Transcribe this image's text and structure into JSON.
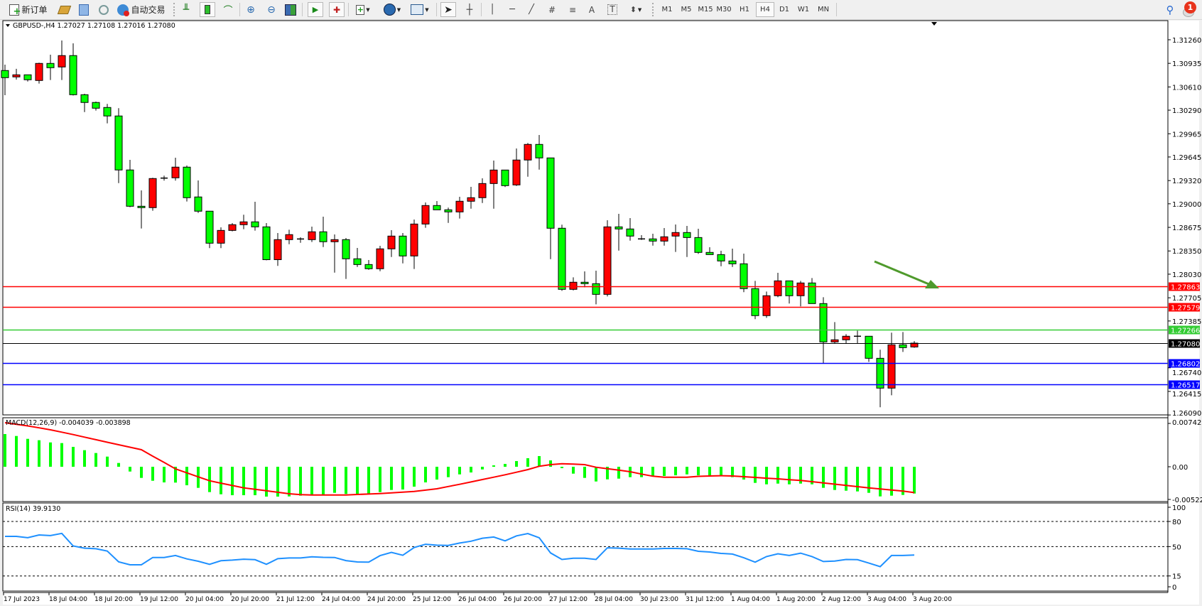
{
  "toolbar": {
    "new_order_label": "新订单",
    "auto_trading_label": "自动交易",
    "timeframes": [
      "M1",
      "M5",
      "M15",
      "M30",
      "H1",
      "H4",
      "D1",
      "W1",
      "MN"
    ],
    "active_timeframe": "H4",
    "notification_count": "1",
    "icons": [
      "new-order-icon",
      "market-watch-icon",
      "navigator-icon",
      "signals-icon",
      "auto-trading-icon",
      "bar-chart-icon",
      "candlestick-icon",
      "line-chart-icon",
      "zoom-in-icon",
      "zoom-out-icon",
      "tile-windows-icon",
      "auto-scroll-icon",
      "chart-shift-icon",
      "indicators-icon",
      "periods-icon",
      "templates-icon",
      "cursor-icon",
      "crosshair-icon",
      "vertical-line-icon",
      "horizontal-line-icon",
      "trendline-icon",
      "equidistant-channel-icon",
      "fibonacci-icon",
      "text-icon",
      "text-label-icon",
      "arrows-icon",
      "search-icon",
      "notification-icon"
    ]
  },
  "chart": {
    "header": "GBPUSD-,H4  1.27027 1.27108 1.27016 1.27080",
    "macd_header": "MACD(12,26,9) -0.004039 -0.003898",
    "rsi_header": "RSI(14) 39.9130",
    "colors": {
      "up": "#ff0000",
      "down": "#00ff00",
      "macd_hist": "#00ff00",
      "macd_signal": "#ff0000",
      "rsi": "#1e90ff",
      "arrow": "#4f9a2c"
    }
  },
  "chart_data": [
    {
      "type": "candlestick",
      "symbol": "GBPUSD-",
      "timeframe": "H4",
      "ylim": [
        1.26101,
        1.31524
      ],
      "y_ticks": [
        "1.31260",
        "1.30935",
        "1.30610",
        "1.30290",
        "1.29965",
        "1.29645",
        "1.29320",
        "1.29000",
        "1.28675",
        "1.28350",
        "1.28030",
        "1.27705",
        "1.27385",
        "1.26740",
        "1.26415",
        "1.26090"
      ],
      "x_ticks": [
        "17 Jul 2023",
        "18 Jul 04:00",
        "18 Jul 20:00",
        "19 Jul 12:00",
        "20 Jul 04:00",
        "20 Jul 20:00",
        "21 Jul 12:00",
        "24 Jul 04:00",
        "24 Jul 20:00",
        "25 Jul 12:00",
        "26 Jul 04:00",
        "26 Jul 20:00",
        "27 Jul 12:00",
        "28 Jul 04:00",
        "30 Jul 23:00",
        "31 Jul 12:00",
        "1 Aug 04:00",
        "1 Aug 20:00",
        "2 Aug 12:00",
        "3 Aug 04:00",
        "3 Aug 20:00"
      ],
      "ohlc": [
        [
          1.30836,
          1.30917,
          1.30496,
          1.30738
        ],
        [
          1.30748,
          1.30859,
          1.30712,
          1.30777
        ],
        [
          1.30777,
          1.3078,
          1.30685,
          1.30709
        ],
        [
          1.30699,
          1.30944,
          1.30656,
          1.30934
        ],
        [
          1.30934,
          1.31054,
          1.30705,
          1.30875
        ],
        [
          1.30885,
          1.3125,
          1.30705,
          1.31042
        ],
        [
          1.31042,
          1.31211,
          1.30493,
          1.30503
        ],
        [
          1.30503,
          1.30516,
          1.30264,
          1.30396
        ],
        [
          1.30396,
          1.30408,
          1.30284,
          1.30317
        ],
        [
          1.30327,
          1.30376,
          1.30108,
          1.3021
        ],
        [
          1.3021,
          1.30317,
          1.29285,
          1.29466
        ],
        [
          1.29466,
          1.29606,
          1.28953,
          1.28966
        ],
        [
          1.28966,
          1.29185,
          1.28659,
          1.28947
        ],
        [
          1.28947,
          1.29358,
          1.28904,
          1.29348
        ],
        [
          1.29348,
          1.29387,
          1.29319,
          1.29354
        ],
        [
          1.29358,
          1.29635,
          1.29319,
          1.29505
        ],
        [
          1.29505,
          1.29527,
          1.29031,
          1.29084
        ],
        [
          1.29094,
          1.29322,
          1.28874,
          1.28898
        ],
        [
          1.28898,
          1.28898,
          1.28389,
          1.28457
        ],
        [
          1.28457,
          1.28675,
          1.28389,
          1.28633
        ],
        [
          1.28633,
          1.28734,
          1.2862,
          1.28712
        ],
        [
          1.28712,
          1.28849,
          1.2865,
          1.28751
        ],
        [
          1.28751,
          1.29028,
          1.2863,
          1.28682
        ],
        [
          1.28682,
          1.28734,
          1.28222,
          1.2823
        ],
        [
          1.2823,
          1.28597,
          1.28144,
          1.28506
        ],
        [
          1.28506,
          1.28643,
          1.28443,
          1.28575
        ],
        [
          1.28512,
          1.28538,
          1.28463,
          1.28515
        ],
        [
          1.28506,
          1.28685,
          1.28473,
          1.28614
        ],
        [
          1.28614,
          1.28822,
          1.28404,
          1.28477
        ],
        [
          1.28477,
          1.28578,
          1.28052,
          1.28506
        ],
        [
          1.28506,
          1.28529,
          1.27964,
          1.28242
        ],
        [
          1.28242,
          1.28392,
          1.2813,
          1.28163
        ],
        [
          1.28163,
          1.28225,
          1.28091,
          1.28105
        ],
        [
          1.28105,
          1.28421,
          1.28071,
          1.28379
        ],
        [
          1.28379,
          1.28636,
          1.28267,
          1.28555
        ],
        [
          1.28555,
          1.28597,
          1.28179,
          1.28281
        ],
        [
          1.28281,
          1.28783,
          1.28101,
          1.28721
        ],
        [
          1.28721,
          1.29018,
          1.28669,
          1.28976
        ],
        [
          1.28976,
          1.29038,
          1.28917,
          1.28917
        ],
        [
          1.28917,
          1.28947,
          1.28737,
          1.28888
        ],
        [
          1.28888,
          1.29096,
          1.28796,
          1.29035
        ],
        [
          1.29035,
          1.29233,
          1.28933,
          1.29084
        ],
        [
          1.29084,
          1.29351,
          1.29011,
          1.29279
        ],
        [
          1.29279,
          1.29596,
          1.28933,
          1.29465
        ],
        [
          1.29465,
          1.29465,
          1.29231,
          1.2925
        ],
        [
          1.2926,
          1.29762,
          1.29246,
          1.29603
        ],
        [
          1.29603,
          1.29838,
          1.29373,
          1.29818
        ],
        [
          1.29818,
          1.29948,
          1.29471,
          1.29632
        ],
        [
          1.29632,
          1.29632,
          1.28238,
          1.28663
        ],
        [
          1.28663,
          1.28712,
          1.27801,
          1.27821
        ],
        [
          1.27821,
          1.27987,
          1.27807,
          1.27919
        ],
        [
          1.27919,
          1.28068,
          1.2785,
          1.27899
        ],
        [
          1.27899,
          1.28078,
          1.27615,
          1.27752
        ],
        [
          1.27752,
          1.28773,
          1.27723,
          1.28682
        ],
        [
          1.28682,
          1.28861,
          1.28355,
          1.28653
        ],
        [
          1.28653,
          1.28803,
          1.28492,
          1.28555
        ],
        [
          1.28516,
          1.28568,
          1.28502,
          1.28516
        ],
        [
          1.28516,
          1.28587,
          1.28424,
          1.28486
        ],
        [
          1.28486,
          1.28666,
          1.28424,
          1.28545
        ],
        [
          1.28555,
          1.28715,
          1.28336,
          1.28604
        ],
        [
          1.28604,
          1.28695,
          1.28267,
          1.28535
        ],
        [
          1.28535,
          1.28656,
          1.2831,
          1.2833
        ],
        [
          1.2833,
          1.28401,
          1.283,
          1.283
        ],
        [
          1.283,
          1.28352,
          1.2814,
          1.28212
        ],
        [
          1.28212,
          1.28382,
          1.2813,
          1.28173
        ],
        [
          1.28173,
          1.28313,
          1.27782,
          1.27831
        ],
        [
          1.27831,
          1.27938,
          1.2741,
          1.27459
        ],
        [
          1.27459,
          1.27791,
          1.27429,
          1.27733
        ],
        [
          1.27733,
          1.28049,
          1.27713,
          1.27938
        ],
        [
          1.27938,
          1.27938,
          1.27625,
          1.27733
        ],
        [
          1.27733,
          1.27938,
          1.27586,
          1.27909
        ],
        [
          1.27909,
          1.27977,
          1.27625,
          1.27625
        ],
        [
          1.27625,
          1.27713,
          1.26803,
          1.27096
        ],
        [
          1.27096,
          1.2737,
          1.27077,
          1.27126
        ],
        [
          1.27126,
          1.27204,
          1.27077,
          1.27175
        ],
        [
          1.27175,
          1.27253,
          1.27077,
          1.27175
        ],
        [
          1.27175,
          1.27175,
          1.26822,
          1.26871
        ],
        [
          1.26871,
          1.26989,
          1.26196,
          1.2646
        ],
        [
          1.2646,
          1.27224,
          1.26362,
          1.27057
        ],
        [
          1.27057,
          1.27233,
          1.26959,
          1.27018
        ],
        [
          1.27027,
          1.27108,
          1.27016,
          1.2708
        ]
      ],
      "hlines": [
        {
          "price": "1.27863",
          "color": "#ff0000"
        },
        {
          "price": "1.27579",
          "color": "#ff0000"
        },
        {
          "price": "1.27266",
          "color": "#33cc33"
        },
        {
          "price": "1.27080",
          "color": "#000000"
        },
        {
          "price": "1.26802",
          "color": "#0000ff"
        },
        {
          "price": "1.26517",
          "color": "#0000ff"
        }
      ],
      "annotation": {
        "type": "arrow",
        "direction": "down-right",
        "color": "#4f9a2c"
      }
    },
    {
      "type": "bar+line",
      "indicator": "MACD(12,26,9)",
      "ylim": [
        -0.005226,
        0.007427
      ],
      "y_ticks": [
        "0.007427",
        "0.00",
        "-0.005226"
      ],
      "histogram": [
        0.00493,
        0.00464,
        0.00421,
        0.004,
        0.00367,
        0.00357,
        0.003,
        0.0025,
        0.00207,
        0.00153,
        0.00057,
        -0.00072,
        -0.00168,
        -0.00211,
        -0.00236,
        -0.00239,
        -0.00279,
        -0.00318,
        -0.00382,
        -0.00415,
        -0.00429,
        -0.00429,
        -0.00429,
        -0.0045,
        -0.0045,
        -0.00447,
        -0.00436,
        -0.00418,
        -0.00418,
        -0.00393,
        -0.0041,
        -0.00418,
        -0.00418,
        -0.00382,
        -0.0035,
        -0.00343,
        -0.003,
        -0.00236,
        -0.00193,
        -0.00157,
        -0.00115,
        -0.00086,
        -0.0004,
        0.00021,
        0.00043,
        0.00086,
        0.00129,
        0.00161,
        0.00096,
        -0.00021,
        -0.00104,
        -0.00168,
        -0.00222,
        -0.0019,
        -0.00179,
        -0.00157,
        -0.00157,
        -0.00139,
        -0.00139,
        -0.00129,
        -0.00115,
        -0.00129,
        -0.00139,
        -0.00139,
        -0.00157,
        -0.00193,
        -0.00243,
        -0.00265,
        -0.00254,
        -0.00265,
        -0.00254,
        -0.00265,
        -0.00318,
        -0.0035,
        -0.00361,
        -0.00372,
        -0.00393,
        -0.00447,
        -0.00436,
        -0.00425,
        -0.004039
      ],
      "signal": [
        0.00664,
        0.0064,
        0.00616,
        0.00587,
        0.00557,
        0.00522,
        0.00485,
        0.00447,
        0.00408,
        0.0037,
        0.00332,
        0.00295,
        0.00257,
        0.0016,
        0.00065,
        -0.00032,
        -0.00092,
        -0.00152,
        -0.00211,
        -0.00247,
        -0.00283,
        -0.00318,
        -0.0034,
        -0.00362,
        -0.00385,
        -0.00407,
        -0.0042,
        -0.00425,
        -0.00425,
        -0.00425,
        -0.00425,
        -0.00418,
        -0.00411,
        -0.00404,
        -0.00393,
        -0.00383,
        -0.00372,
        -0.00352,
        -0.00332,
        -0.00298,
        -0.00265,
        -0.00229,
        -0.00193,
        -0.00157,
        -0.00121,
        -0.00082,
        -0.00043,
        8e-05,
        0.00032,
        0.00046,
        0.0004,
        0.00032,
        -8e-05,
        -0.00029,
        -0.0005,
        -0.00075,
        -0.0011,
        -0.00143,
        -0.00157,
        -0.00157,
        -0.00157,
        -0.00145,
        -0.00139,
        -0.00135,
        -0.00139,
        -0.0015,
        -0.00161,
        -0.00172,
        -0.00182,
        -0.00195,
        -0.00207,
        -0.00225,
        -0.00243,
        -0.00263,
        -0.00282,
        -0.003,
        -0.00318,
        -0.00334,
        -0.0035,
        -0.00366,
        -0.003898
      ]
    },
    {
      "type": "line",
      "indicator": "RSI(14)",
      "ylim": [
        0,
        100
      ],
      "y_ticks": [
        "100",
        "80",
        "50",
        "15",
        "0"
      ],
      "levels": [
        80,
        50,
        15
      ],
      "values": [
        62.2,
        62.2,
        60.6,
        63.9,
        63.1,
        65.8,
        50.8,
        48.1,
        47.5,
        44.7,
        31.9,
        28.3,
        28.3,
        37,
        37,
        39.4,
        35.3,
        32.5,
        28.9,
        33.1,
        33.9,
        35,
        34.4,
        28.9,
        35.6,
        36.4,
        36.4,
        37.8,
        37.2,
        37,
        33.3,
        31.7,
        31.4,
        39.2,
        43.1,
        39.7,
        48.9,
        52.8,
        51.7,
        51.4,
        54.2,
        56.4,
        60,
        61.4,
        56.9,
        62.8,
        65.6,
        60.6,
        42.5,
        34.7,
        36.1,
        36.1,
        34.7,
        48.6,
        48.1,
        47.2,
        47.2,
        47.2,
        47.8,
        47.8,
        47.5,
        44.4,
        43.6,
        41.9,
        41.1,
        36.7,
        31.4,
        38.1,
        41.4,
        39.4,
        42.2,
        38.1,
        32.2,
        32.8,
        34.7,
        34.4,
        30.3,
        26.1,
        39.4,
        39.4,
        39.913
      ]
    }
  ]
}
